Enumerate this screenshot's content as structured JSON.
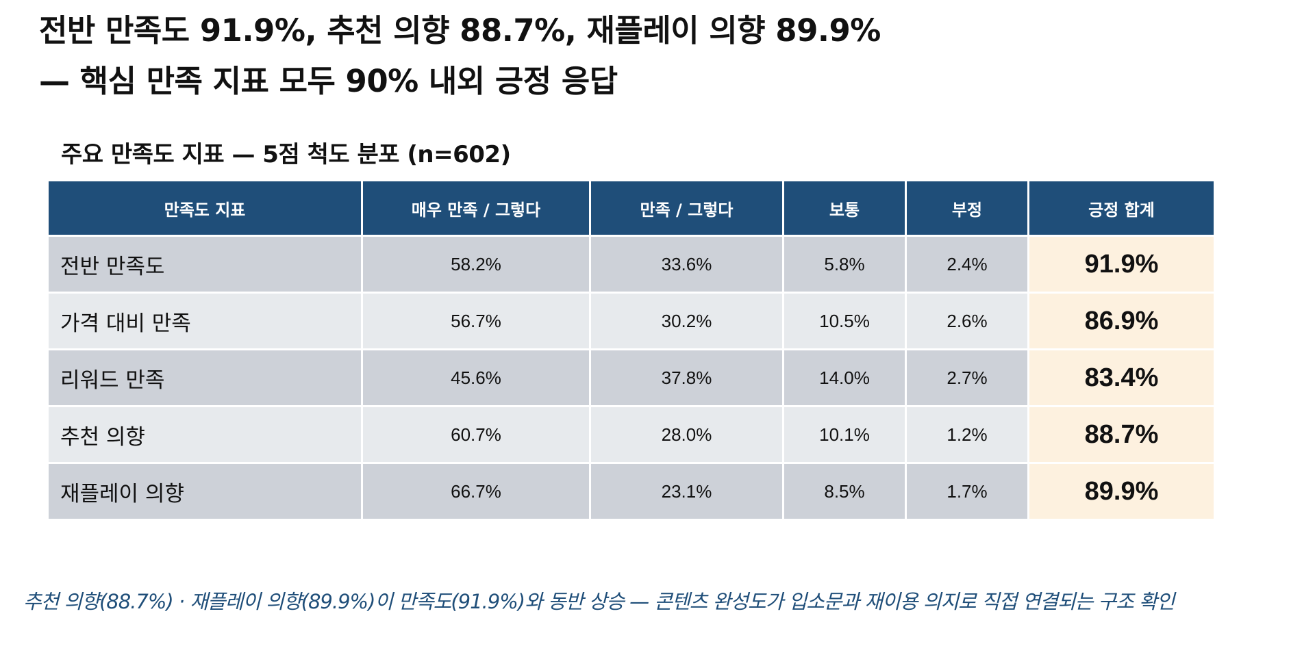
{
  "headline": {
    "line1": "전반 만족도 91.9%, 추천 의향 88.7%, 재플레이 의향 89.9%",
    "line2": "— 핵심 만족 지표 모두 90% 내외 긍정 응답"
  },
  "table": {
    "title": "주요 만족도 지표 — 5점 척도 분포 (n=602)",
    "columns": [
      "만족도 지표",
      "매우 만족 / 그렇다",
      "만족 / 그렇다",
      "보통",
      "부정",
      "긍정 합계"
    ],
    "rows": [
      [
        "전반 만족도",
        "58.2%",
        "33.6%",
        "5.8%",
        "2.4%",
        "91.9%"
      ],
      [
        "가격 대비 만족",
        "56.7%",
        "30.2%",
        "10.5%",
        "2.6%",
        "86.9%"
      ],
      [
        "리워드 만족",
        "45.6%",
        "37.8%",
        "14.0%",
        "2.7%",
        "83.4%"
      ],
      [
        "추천 의향",
        "60.7%",
        "28.0%",
        "10.1%",
        "1.2%",
        "88.7%"
      ],
      [
        "재플레이 의향",
        "66.7%",
        "23.1%",
        "8.5%",
        "1.7%",
        "89.9%"
      ]
    ]
  },
  "footnote": "추천 의향(88.7%) · 재플레이 의향(89.9%)이 만족도(91.9%)와 동반 상승 — 콘텐츠 완성도가 입소문과 재이용 의지로 직접 연결되는 구조 확인",
  "colors": {
    "header_bg": "#1f4e79",
    "row_dark": "#cdd1d8",
    "row_light": "#e7eaed",
    "total_highlight": "#fdf1df",
    "footnote_text": "#1f4e79"
  }
}
